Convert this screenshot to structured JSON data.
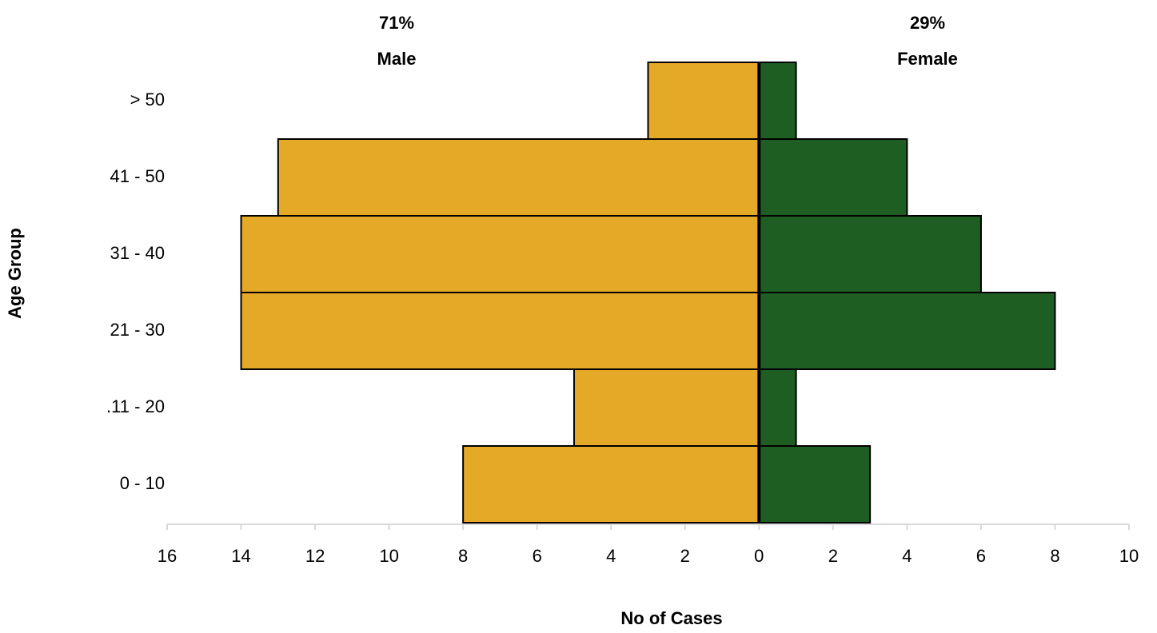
{
  "chart_data": {
    "type": "population-pyramid",
    "xlabel": "No of Cases",
    "ylabel": "Age Group",
    "categories": [
      "0 - 10",
      ".11 - 20",
      "21 - 30",
      "31 - 40",
      "41 - 50",
      "> 50"
    ],
    "series": [
      {
        "name": "Male",
        "color": "#E5A928",
        "share": 71,
        "share_label": "71%",
        "values": [
          8,
          5,
          14,
          14,
          13,
          3
        ]
      },
      {
        "name": "Female",
        "color": "#1E5E22",
        "share": 29,
        "share_label": "29%",
        "values": [
          3,
          1,
          8,
          6,
          4,
          1
        ]
      }
    ],
    "xlim": [
      -16,
      10
    ],
    "xticks": [
      {
        "value": -16,
        "label": "16"
      },
      {
        "value": -14,
        "label": "14"
      },
      {
        "value": -12,
        "label": "12"
      },
      {
        "value": -10,
        "label": "10"
      },
      {
        "value": -8,
        "label": "8"
      },
      {
        "value": -6,
        "label": "6"
      },
      {
        "value": -4,
        "label": "4"
      },
      {
        "value": -2,
        "label": "2"
      },
      0,
      2,
      4,
      6,
      8,
      10
    ]
  }
}
